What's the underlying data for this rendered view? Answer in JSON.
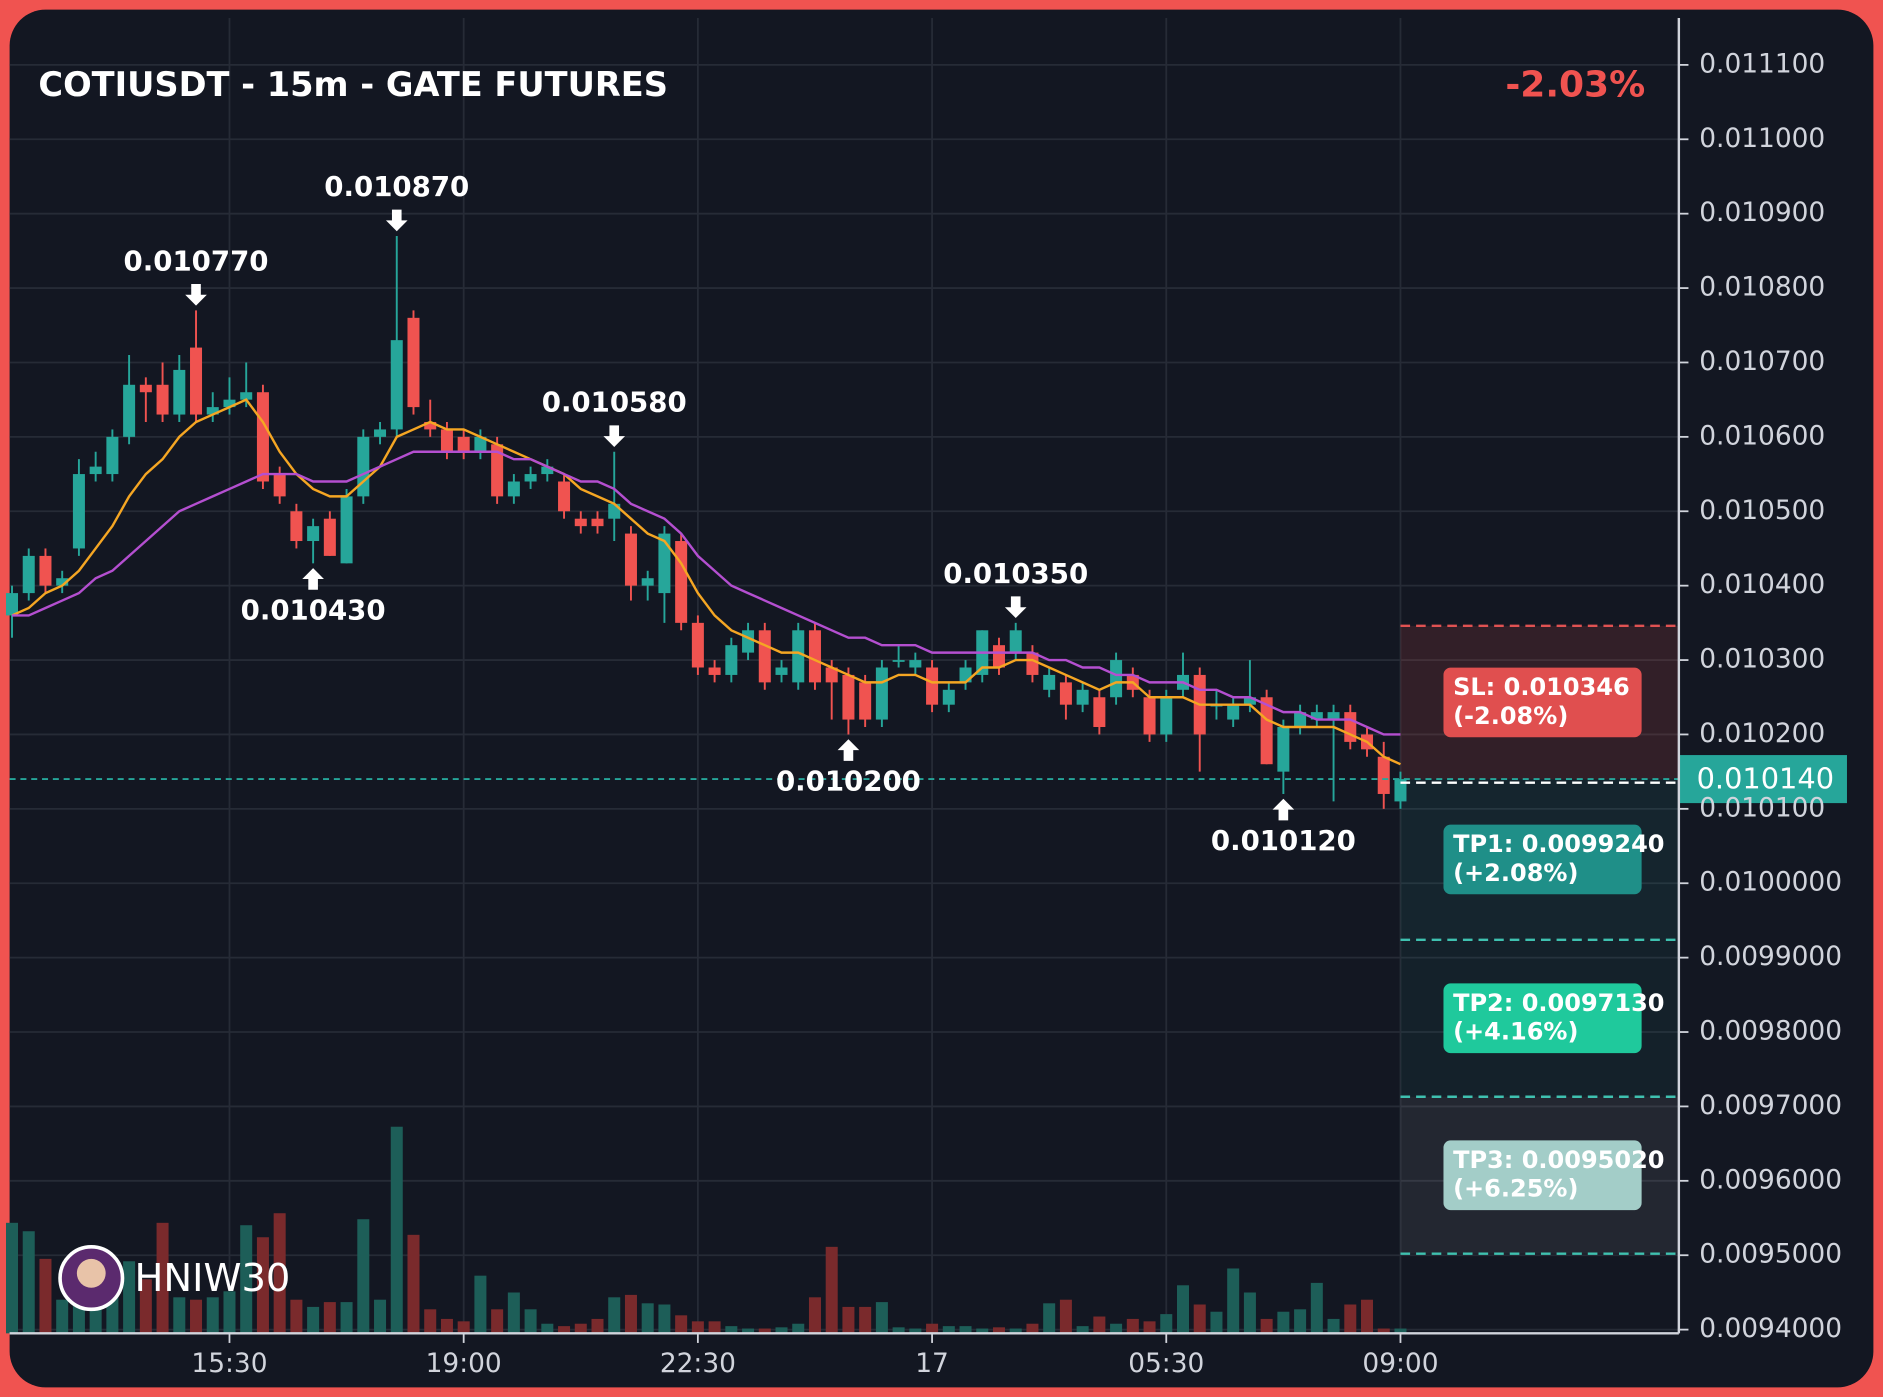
{
  "chart_data": {
    "type": "candlestick",
    "title": "COTIUSDT - 15m - GATE FUTURES",
    "change_label": "-2.03%",
    "watermark": "HNIW30",
    "up_color": "#26a69a",
    "down_color": "#f05350",
    "volume_up_color": "#1d5e58",
    "volume_down_color": "#7a2a2c",
    "grid": true,
    "ylim": [
      0.009395,
      0.011163
    ],
    "yticks": [
      {
        "value": 0.0111,
        "label": "0.011100"
      },
      {
        "value": 0.011,
        "label": "0.011000"
      },
      {
        "value": 0.0109,
        "label": "0.010900"
      },
      {
        "value": 0.0108,
        "label": "0.010800"
      },
      {
        "value": 0.0107,
        "label": "0.010700"
      },
      {
        "value": 0.0106,
        "label": "0.010600"
      },
      {
        "value": 0.0105,
        "label": "0.010500"
      },
      {
        "value": 0.0104,
        "label": "0.010400"
      },
      {
        "value": 0.0103,
        "label": "0.010300"
      },
      {
        "value": 0.0102,
        "label": "0.010200"
      },
      {
        "value": 0.0101,
        "label": "0.010100"
      },
      {
        "value": 0.01,
        "label": "0.0100000"
      },
      {
        "value": 0.0099,
        "label": "0.0099000"
      },
      {
        "value": 0.0098,
        "label": "0.0098000"
      },
      {
        "value": 0.0097,
        "label": "0.0097000"
      },
      {
        "value": 0.0096,
        "label": "0.0096000"
      },
      {
        "value": 0.0095,
        "label": "0.0095000"
      },
      {
        "value": 0.0094,
        "label": "0.0094000"
      }
    ],
    "xticks": [
      {
        "value": 13,
        "label": "15:30"
      },
      {
        "value": 27,
        "label": "19:00"
      },
      {
        "value": 41,
        "label": "22:30"
      },
      {
        "value": 55,
        "label": "17"
      },
      {
        "value": 69,
        "label": "05:30"
      },
      {
        "value": 83,
        "label": "09:00"
      }
    ],
    "candles": [
      [
        0.01036,
        0.0104,
        0.01033,
        0.01039
      ],
      [
        0.01039,
        0.01045,
        0.01038,
        0.01044
      ],
      [
        0.01044,
        0.01045,
        0.01039,
        0.0104
      ],
      [
        0.0104,
        0.01042,
        0.01039,
        0.01041
      ],
      [
        0.01045,
        0.01057,
        0.01044,
        0.01055
      ],
      [
        0.01055,
        0.01058,
        0.01054,
        0.01056
      ],
      [
        0.01055,
        0.01061,
        0.01054,
        0.0106
      ],
      [
        0.0106,
        0.01071,
        0.01059,
        0.01067
      ],
      [
        0.01067,
        0.01068,
        0.01062,
        0.01066
      ],
      [
        0.01067,
        0.0107,
        0.01062,
        0.01063
      ],
      [
        0.01063,
        0.01071,
        0.01062,
        0.01069
      ],
      [
        0.01072,
        0.01077,
        0.01062,
        0.01063
      ],
      [
        0.01063,
        0.01066,
        0.01062,
        0.01064
      ],
      [
        0.01064,
        0.01068,
        0.01063,
        0.01065
      ],
      [
        0.01065,
        0.0107,
        0.01064,
        0.01066
      ],
      [
        0.01066,
        0.01067,
        0.01053,
        0.01054
      ],
      [
        0.01055,
        0.01056,
        0.01051,
        0.01052
      ],
      [
        0.0105,
        0.01051,
        0.01045,
        0.01046
      ],
      [
        0.01046,
        0.01049,
        0.01043,
        0.01048
      ],
      [
        0.01049,
        0.0105,
        0.01044,
        0.01044
      ],
      [
        0.01043,
        0.01053,
        0.01043,
        0.01052
      ],
      [
        0.01052,
        0.01061,
        0.01051,
        0.0106
      ],
      [
        0.0106,
        0.01062,
        0.01059,
        0.01061
      ],
      [
        0.01061,
        0.01087,
        0.0106,
        0.01073
      ],
      [
        0.01076,
        0.01077,
        0.01063,
        0.01064
      ],
      [
        0.01062,
        0.01065,
        0.0106,
        0.01061
      ],
      [
        0.01061,
        0.01062,
        0.01057,
        0.01058
      ],
      [
        0.0106,
        0.01061,
        0.01057,
        0.01058
      ],
      [
        0.01058,
        0.01061,
        0.01057,
        0.0106
      ],
      [
        0.01059,
        0.0106,
        0.01051,
        0.01052
      ],
      [
        0.01052,
        0.01055,
        0.01051,
        0.01054
      ],
      [
        0.01054,
        0.01056,
        0.01053,
        0.01055
      ],
      [
        0.01055,
        0.01057,
        0.01054,
        0.01056
      ],
      [
        0.01054,
        0.01055,
        0.01049,
        0.0105
      ],
      [
        0.01049,
        0.0105,
        0.01047,
        0.01048
      ],
      [
        0.01049,
        0.0105,
        0.01047,
        0.01048
      ],
      [
        0.01049,
        0.01058,
        0.01046,
        0.01051
      ],
      [
        0.01047,
        0.01048,
        0.01038,
        0.0104
      ],
      [
        0.0104,
        0.01042,
        0.01038,
        0.01041
      ],
      [
        0.01039,
        0.01048,
        0.01035,
        0.01047
      ],
      [
        0.01046,
        0.01047,
        0.01034,
        0.01035
      ],
      [
        0.01035,
        0.01036,
        0.01028,
        0.01029
      ],
      [
        0.01029,
        0.0103,
        0.01027,
        0.01028
      ],
      [
        0.01028,
        0.01033,
        0.01027,
        0.01032
      ],
      [
        0.01031,
        0.01035,
        0.0103,
        0.01034
      ],
      [
        0.01034,
        0.01035,
        0.01026,
        0.01027
      ],
      [
        0.01028,
        0.0103,
        0.01027,
        0.01029
      ],
      [
        0.01027,
        0.01035,
        0.01026,
        0.01034
      ],
      [
        0.01034,
        0.01035,
        0.01026,
        0.01027
      ],
      [
        0.01029,
        0.0103,
        0.01022,
        0.01027
      ],
      [
        0.01028,
        0.01029,
        0.0102,
        0.01022
      ],
      [
        0.01027,
        0.01028,
        0.01021,
        0.01022
      ],
      [
        0.01022,
        0.0103,
        0.01021,
        0.01029
      ],
      [
        0.0103,
        0.01032,
        0.01029,
        0.0103
      ],
      [
        0.01029,
        0.01031,
        0.01028,
        0.0103
      ],
      [
        0.01029,
        0.0103,
        0.01023,
        0.01024
      ],
      [
        0.01024,
        0.01027,
        0.01023,
        0.01026
      ],
      [
        0.01027,
        0.0103,
        0.01026,
        0.01029
      ],
      [
        0.01028,
        0.01034,
        0.01027,
        0.01034
      ],
      [
        0.01032,
        0.01033,
        0.01028,
        0.01029
      ],
      [
        0.01031,
        0.01035,
        0.0103,
        0.01034
      ],
      [
        0.01031,
        0.01032,
        0.01027,
        0.01028
      ],
      [
        0.01026,
        0.01029,
        0.01025,
        0.01028
      ],
      [
        0.01027,
        0.01028,
        0.01022,
        0.01024
      ],
      [
        0.01024,
        0.01027,
        0.01023,
        0.01026
      ],
      [
        0.01025,
        0.01026,
        0.0102,
        0.01021
      ],
      [
        0.01025,
        0.01031,
        0.01024,
        0.0103
      ],
      [
        0.01028,
        0.01029,
        0.01025,
        0.01026
      ],
      [
        0.01025,
        0.01026,
        0.01019,
        0.0102
      ],
      [
        0.0102,
        0.01026,
        0.01019,
        0.01025
      ],
      [
        0.01026,
        0.01031,
        0.01025,
        0.01028
      ],
      [
        0.01028,
        0.01029,
        0.01015,
        0.0102
      ],
      [
        0.01024,
        0.01026,
        0.01022,
        0.01024
      ],
      [
        0.01022,
        0.01025,
        0.01021,
        0.01024
      ],
      [
        0.01024,
        0.0103,
        0.01023,
        0.01025
      ],
      [
        0.01025,
        0.01026,
        0.01016,
        0.01016
      ],
      [
        0.01015,
        0.01022,
        0.01012,
        0.01021
      ],
      [
        0.01021,
        0.01024,
        0.0102,
        0.01023
      ],
      [
        0.01022,
        0.01024,
        0.01021,
        0.01023
      ],
      [
        0.01022,
        0.01024,
        0.01011,
        0.01023
      ],
      [
        0.01023,
        0.01024,
        0.01018,
        0.01019
      ],
      [
        0.0102,
        0.01021,
        0.01017,
        0.01018
      ],
      [
        0.01017,
        0.01019,
        0.0101,
        0.01012
      ],
      [
        0.01011,
        0.01015,
        0.0101,
        0.01014
      ]
    ],
    "volumes": [
      92,
      85,
      62,
      28,
      40,
      22,
      30,
      60,
      45,
      92,
      30,
      28,
      30,
      35,
      90,
      80,
      100,
      28,
      22,
      26,
      26,
      95,
      28,
      172,
      82,
      20,
      12,
      10,
      48,
      20,
      34,
      20,
      8,
      6,
      8,
      12,
      30,
      32,
      25,
      24,
      15,
      10,
      10,
      6,
      4,
      4,
      5,
      8,
      30,
      72,
      22,
      22,
      26,
      5,
      4,
      8,
      6,
      6,
      4,
      5,
      4,
      8,
      25,
      28,
      6,
      14,
      8,
      12,
      10,
      16,
      40,
      24,
      18,
      54,
      34,
      12,
      18,
      20,
      42,
      12,
      24,
      28,
      4,
      4
    ],
    "ma": [
      {
        "color": "#f5a623",
        "values": [
          0.01036,
          0.01037,
          0.01039,
          0.0104,
          0.01042,
          0.01045,
          0.01048,
          0.01052,
          0.01055,
          0.01057,
          0.0106,
          0.01062,
          0.01063,
          0.01064,
          0.01065,
          0.01062,
          0.01058,
          0.01055,
          0.01053,
          0.01052,
          0.01052,
          0.01054,
          0.01056,
          0.0106,
          0.01061,
          0.01062,
          0.01061,
          0.01061,
          0.0106,
          0.01059,
          0.01058,
          0.01057,
          0.01056,
          0.01055,
          0.01053,
          0.01052,
          0.01051,
          0.01049,
          0.01047,
          0.01046,
          0.01043,
          0.01039,
          0.01036,
          0.01034,
          0.01033,
          0.01032,
          0.01031,
          0.01031,
          0.0103,
          0.01029,
          0.01028,
          0.01027,
          0.01027,
          0.01028,
          0.01028,
          0.01027,
          0.01027,
          0.01027,
          0.01029,
          0.01029,
          0.0103,
          0.0103,
          0.01029,
          0.01028,
          0.01027,
          0.01026,
          0.01027,
          0.01027,
          0.01025,
          0.01025,
          0.01025,
          0.01024,
          0.01024,
          0.01024,
          0.01024,
          0.01022,
          0.01021,
          0.01021,
          0.01021,
          0.01021,
          0.0102,
          0.01019,
          0.01017,
          0.01016
        ]
      },
      {
        "color": "#b44fd0",
        "values": [
          0.01036,
          0.01036,
          0.01037,
          0.01038,
          0.01039,
          0.01041,
          0.01042,
          0.01044,
          0.01046,
          0.01048,
          0.0105,
          0.01051,
          0.01052,
          0.01053,
          0.01054,
          0.01055,
          0.01055,
          0.01055,
          0.01054,
          0.01054,
          0.01054,
          0.01055,
          0.01056,
          0.01057,
          0.01058,
          0.01058,
          0.01058,
          0.01058,
          0.01058,
          0.01058,
          0.01057,
          0.01057,
          0.01056,
          0.01055,
          0.01054,
          0.01054,
          0.01053,
          0.01051,
          0.0105,
          0.01049,
          0.01047,
          0.01044,
          0.01042,
          0.0104,
          0.01039,
          0.01038,
          0.01037,
          0.01036,
          0.01035,
          0.01034,
          0.01033,
          0.01033,
          0.01032,
          0.01032,
          0.01032,
          0.01031,
          0.01031,
          0.01031,
          0.01031,
          0.01031,
          0.01031,
          0.01031,
          0.0103,
          0.0103,
          0.01029,
          0.01029,
          0.01028,
          0.01028,
          0.01027,
          0.01027,
          0.01027,
          0.01026,
          0.01026,
          0.01025,
          0.01025,
          0.01024,
          0.01023,
          0.01023,
          0.01022,
          0.01022,
          0.01022,
          0.01021,
          0.0102,
          0.0102
        ]
      }
    ],
    "annotations": [
      {
        "index": 11,
        "value": 0.01077,
        "label": "0.010770",
        "kind": "high"
      },
      {
        "index": 23,
        "value": 0.01087,
        "label": "0.010870",
        "kind": "high"
      },
      {
        "index": 18,
        "value": 0.01043,
        "label": "0.010430",
        "kind": "low"
      },
      {
        "index": 36,
        "value": 0.01058,
        "label": "0.010580",
        "kind": "high"
      },
      {
        "index": 50,
        "value": 0.0102,
        "label": "0.010200",
        "kind": "low"
      },
      {
        "index": 60,
        "value": 0.01035,
        "label": "0.010350",
        "kind": "high"
      },
      {
        "index": 76,
        "value": 0.01012,
        "label": "0.010120",
        "kind": "low"
      }
    ],
    "entry": {
      "index": 83,
      "value": 0.01014,
      "label": "0.010140",
      "color": "#26a69a"
    },
    "levels": [
      {
        "value": 0.010346,
        "label": "SL: 0.010346",
        "change": "(-2.08%)",
        "color": "#e04f4f",
        "line_color": "#e05252",
        "zone": "rgba(240,83,80,0.14)"
      },
      {
        "value": 0.009924,
        "label": "TP1: 0.0099240",
        "change": "(+2.08%)",
        "color": "#1f8f88",
        "line_color": "#3fc1b0",
        "zone": "rgba(38,166,154,0.10)"
      },
      {
        "value": 0.009713,
        "label": "TP2: 0.0097130",
        "change": "(+4.16%)",
        "color": "#1fc99c",
        "line_color": "#3fc1b0",
        "zone": "rgba(38,166,154,0.07)"
      },
      {
        "value": 0.009502,
        "label": "TP3: 0.0095020",
        "change": "(+6.25%)",
        "color": "#a3cdc8",
        "line_color": "#3fc1b0",
        "zone": "rgba(255,255,255,0.07)"
      }
    ]
  }
}
